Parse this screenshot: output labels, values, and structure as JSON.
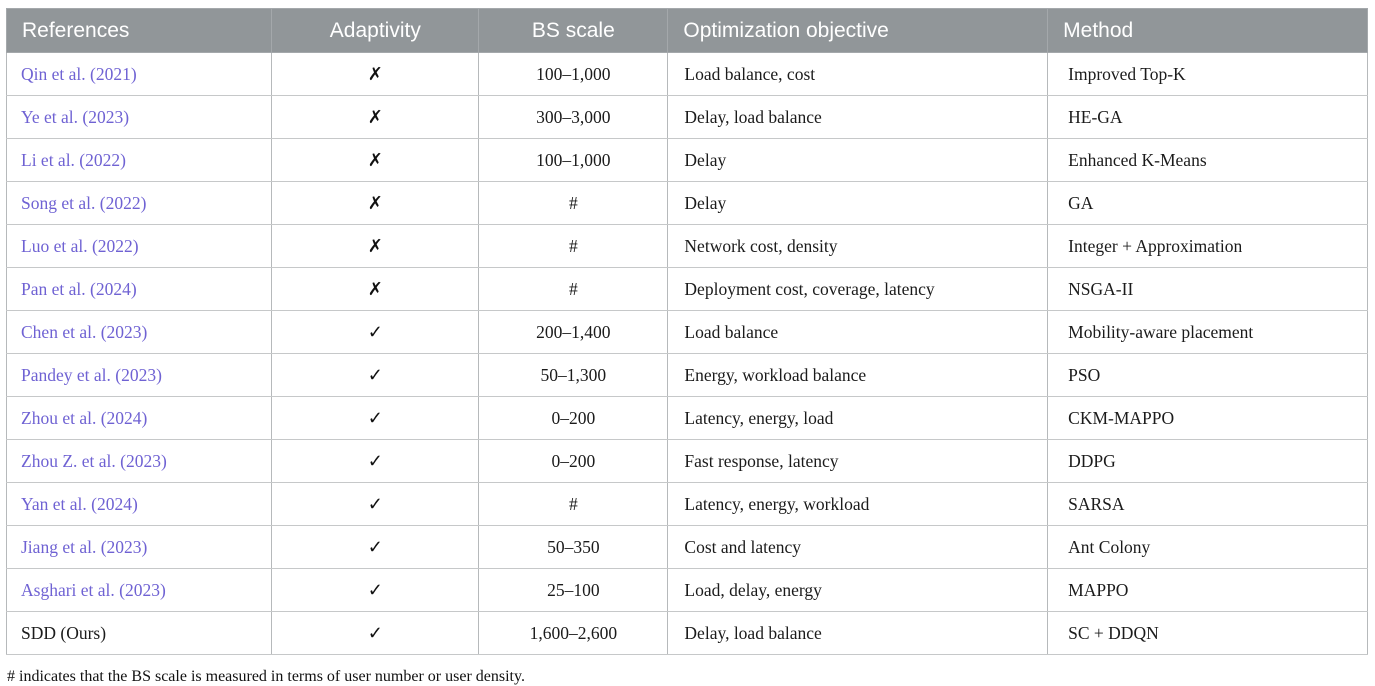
{
  "table": {
    "columns": [
      {
        "key": "references",
        "label": "References",
        "align": "left"
      },
      {
        "key": "adaptivity",
        "label": "Adaptivity",
        "align": "center"
      },
      {
        "key": "bs_scale",
        "label": "BS scale",
        "align": "center"
      },
      {
        "key": "objective",
        "label": "Optimization objective",
        "align": "left"
      },
      {
        "key": "method",
        "label": "Method",
        "align": "left"
      }
    ],
    "rows": [
      {
        "reference": "Qin et al. (2021)",
        "is_link": true,
        "adaptive": false,
        "bs_scale": "100–1,000",
        "objective": "Load balance, cost",
        "method": "Improved Top-K"
      },
      {
        "reference": "Ye et al. (2023)",
        "is_link": true,
        "adaptive": false,
        "bs_scale": "300–3,000",
        "objective": "Delay, load balance",
        "method": "HE-GA"
      },
      {
        "reference": "Li et al. (2022)",
        "is_link": true,
        "adaptive": false,
        "bs_scale": "100–1,000",
        "objective": "Delay",
        "method": "Enhanced K-Means"
      },
      {
        "reference": "Song et al. (2022)",
        "is_link": true,
        "adaptive": false,
        "bs_scale": "#",
        "objective": "Delay",
        "method": "GA"
      },
      {
        "reference": "Luo et al. (2022)",
        "is_link": true,
        "adaptive": false,
        "bs_scale": "#",
        "objective": "Network cost, density",
        "method": "Integer + Approximation"
      },
      {
        "reference": "Pan et al. (2024)",
        "is_link": true,
        "adaptive": false,
        "bs_scale": "#",
        "objective": "Deployment cost, coverage, latency",
        "method": "NSGA-II"
      },
      {
        "reference": "Chen et al. (2023)",
        "is_link": true,
        "adaptive": true,
        "bs_scale": "200–1,400",
        "objective": "Load balance",
        "method": "Mobility-aware placement"
      },
      {
        "reference": "Pandey et al. (2023)",
        "is_link": true,
        "adaptive": true,
        "bs_scale": "50–1,300",
        "objective": "Energy, workload balance",
        "method": "PSO"
      },
      {
        "reference": "Zhou et al. (2024)",
        "is_link": true,
        "adaptive": true,
        "bs_scale": "0–200",
        "objective": "Latency, energy, load",
        "method": "CKM-MAPPO"
      },
      {
        "reference": "Zhou Z. et al. (2023)",
        "is_link": true,
        "adaptive": true,
        "bs_scale": "0–200",
        "objective": "Fast response, latency",
        "method": "DDPG"
      },
      {
        "reference": "Yan et al. (2024)",
        "is_link": true,
        "adaptive": true,
        "bs_scale": "#",
        "objective": "Latency, energy, workload",
        "method": "SARSA"
      },
      {
        "reference": "Jiang et al. (2023)",
        "is_link": true,
        "adaptive": true,
        "bs_scale": "50–350",
        "objective": "Cost and latency",
        "method": "Ant Colony"
      },
      {
        "reference": "Asghari et al. (2023)",
        "is_link": true,
        "adaptive": true,
        "bs_scale": "25–100",
        "objective": "Load, delay, energy",
        "method": "MAPPO"
      },
      {
        "reference": "SDD (Ours)",
        "is_link": false,
        "adaptive": true,
        "bs_scale": "1,600–2,600",
        "objective": "Delay, load balance",
        "method": "SC + DDQN"
      }
    ]
  },
  "icons": {
    "adaptive_yes": "✓",
    "adaptive_no": "✗"
  },
  "footnote": "# indicates that the BS scale is measured in terms of user number or user density.",
  "colors": {
    "header_bg": "#919699",
    "header_text": "#ffffff",
    "link": "#6f62d3",
    "body_text": "#1b1b1b",
    "border": "#b6b9bb"
  }
}
